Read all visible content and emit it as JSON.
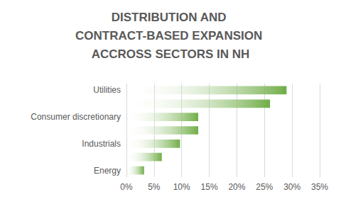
{
  "chart_data": {
    "type": "bar",
    "orientation": "horizontal",
    "title": "DISTRIBUTION AND CONTRACT-BASED EXPANSION ACCROSS SECTORS IN NH",
    "categories": [
      "Energy",
      null,
      "Industrials",
      null,
      "Consumer discretionary",
      null,
      "Utilities"
    ],
    "values": [
      3.2,
      6.4,
      9.7,
      13,
      13,
      26,
      29
    ],
    "color": "#70ad47",
    "xlim": [
      0,
      35
    ],
    "xticks": [
      {
        "value": 0,
        "label": "0%"
      },
      {
        "value": 5,
        "label": "5%"
      },
      {
        "value": 10,
        "label": "10%"
      },
      {
        "value": 15,
        "label": "15%"
      },
      {
        "value": 20,
        "label": "20%"
      },
      {
        "value": 25,
        "label": "25%"
      },
      {
        "value": 30,
        "label": "30%"
      },
      {
        "value": 35,
        "label": "35%"
      }
    ],
    "grid": true
  }
}
